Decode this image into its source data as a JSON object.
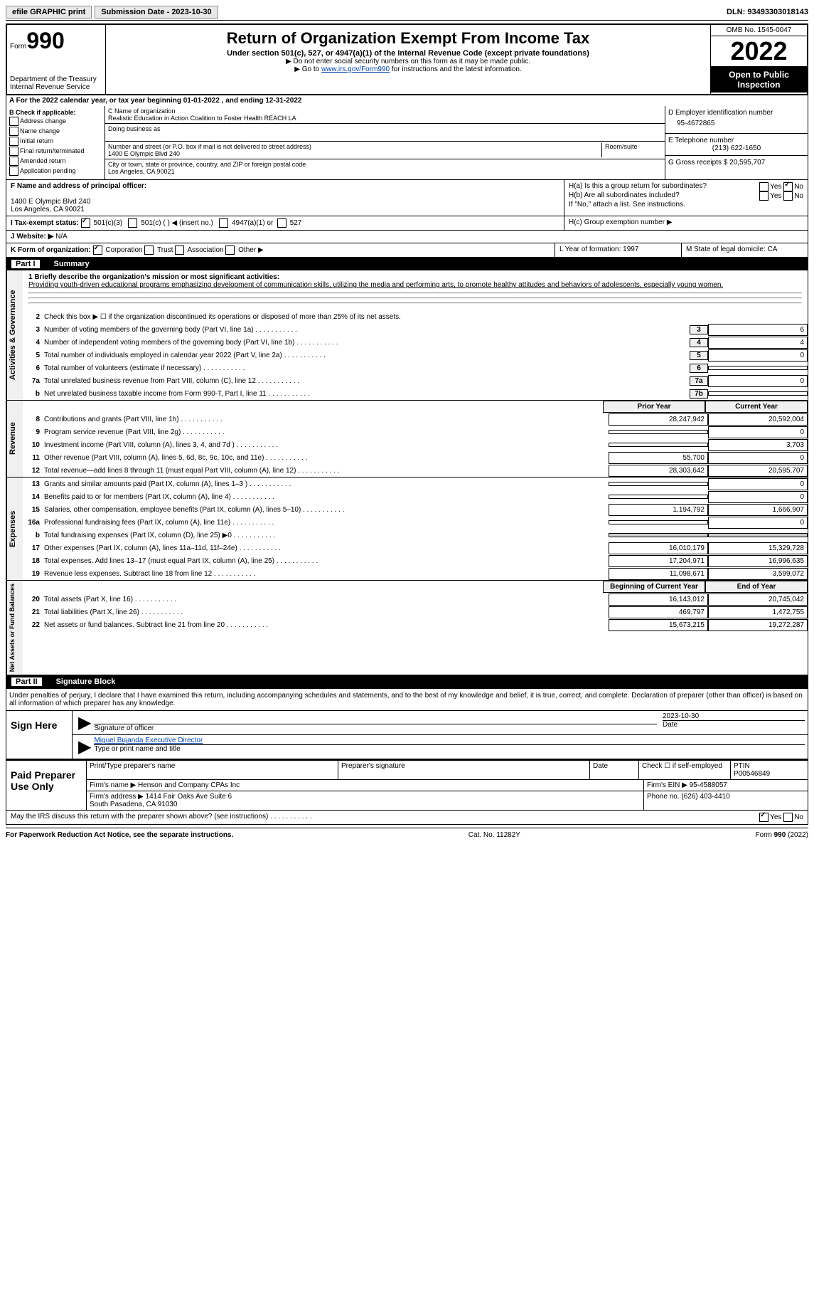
{
  "topbar": {
    "efile": "efile GRAPHIC print",
    "submission": "Submission Date - 2023-10-30",
    "dln": "DLN: 93493303018143"
  },
  "header": {
    "form_label": "Form",
    "form_num": "990",
    "dept": "Department of the Treasury\nInternal Revenue Service",
    "title": "Return of Organization Exempt From Income Tax",
    "sub": "Under section 501(c), 527, or 4947(a)(1) of the Internal Revenue Code (except private foundations)",
    "note1": "▶ Do not enter social security numbers on this form as it may be made public.",
    "note2_pre": "▶ Go to ",
    "note2_link": "www.irs.gov/Form990",
    "note2_post": " for instructions and the latest information.",
    "omb": "OMB No. 1545-0047",
    "year": "2022",
    "inspection": "Open to Public Inspection"
  },
  "section_a": {
    "calendar": "A For the 2022 calendar year, or tax year beginning 01-01-2022     , and ending 12-31-2022",
    "b_label": "B Check if applicable:",
    "b_options": [
      "Address change",
      "Name change",
      "Initial return",
      "Final return/terminated",
      "Amended return",
      "Application pending"
    ],
    "c_name_label": "C Name of organization",
    "c_name": "Realistic Education in Action Coalition to Foster Health REACH LA",
    "dba_label": "Doing business as",
    "addr_label": "Number and street (or P.O. box if mail is not delivered to street address)",
    "room_label": "Room/suite",
    "addr": "1400 E Olympic Blvd 240",
    "city_label": "City or town, state or province, country, and ZIP or foreign postal code",
    "city": "Los Angeles, CA  90021",
    "d_label": "D Employer identification number",
    "d_val": "95-4672865",
    "e_label": "E Telephone number",
    "e_val": "(213) 622-1650",
    "g_label": "G Gross receipts $ 20,595,707"
  },
  "mid": {
    "f_label": "F  Name and address of principal officer:",
    "f_addr": "1400 E Olympic Blvd 240\nLos Angeles, CA  90021",
    "ha": "H(a)  Is this a group return for subordinates?",
    "hb": "H(b)  Are all subordinates included?",
    "hb_note": "If \"No,\" attach a list. See instructions.",
    "hc": "H(c)  Group exemption number ▶",
    "i": "I  Tax-exempt status:",
    "i_501c3": "501(c)(3)",
    "i_501c": "501(c) (  ) ◀ (insert no.)",
    "i_4947": "4947(a)(1) or",
    "i_527": "527",
    "j": "J  Website: ▶",
    "j_val": "N/A",
    "k": "K Form of organization:",
    "k_corp": "Corporation",
    "k_trust": "Trust",
    "k_assoc": "Association",
    "k_other": "Other ▶",
    "l": "L Year of formation: 1997",
    "m": "M State of legal domicile: CA"
  },
  "part1": {
    "title": "Part I",
    "name": "Summary",
    "line1_label": "1  Briefly describe the organization's mission or most significant activities:",
    "line1_text": "Providing youth-driven educational programs emphasizing development of communication skills, utilizing the media and performing arts, to promote healthy attitudes and behaviors of adolescents, especially young women.",
    "line2": "Check this box ▶ ☐  if the organization discontinued its operations or disposed of more than 25% of its net assets.",
    "vert1": "Activities & Governance",
    "vert2": "Revenue",
    "vert3": "Expenses",
    "vert4": "Net Assets or Fund Balances",
    "prior_year": "Prior Year",
    "current_year": "Current Year",
    "begin_year": "Beginning of Current Year",
    "end_year": "End of Year",
    "lines_gov": [
      {
        "n": "3",
        "d": "Number of voting members of the governing body (Part VI, line 1a)",
        "box": "3",
        "v": "6"
      },
      {
        "n": "4",
        "d": "Number of independent voting members of the governing body (Part VI, line 1b)",
        "box": "4",
        "v": "4"
      },
      {
        "n": "5",
        "d": "Total number of individuals employed in calendar year 2022 (Part V, line 2a)",
        "box": "5",
        "v": "0"
      },
      {
        "n": "6",
        "d": "Total number of volunteers (estimate if necessary)",
        "box": "6",
        "v": ""
      },
      {
        "n": "7a",
        "d": "Total unrelated business revenue from Part VIII, column (C), line 12",
        "box": "7a",
        "v": "0"
      },
      {
        "n": "b",
        "d": "Net unrelated business taxable income from Form 990-T, Part I, line 11",
        "box": "7b",
        "v": ""
      }
    ],
    "lines_rev": [
      {
        "n": "8",
        "d": "Contributions and grants (Part VIII, line 1h)",
        "p": "28,247,942",
        "c": "20,592,004"
      },
      {
        "n": "9",
        "d": "Program service revenue (Part VIII, line 2g)",
        "p": "",
        "c": "0"
      },
      {
        "n": "10",
        "d": "Investment income (Part VIII, column (A), lines 3, 4, and 7d )",
        "p": "",
        "c": "3,703"
      },
      {
        "n": "11",
        "d": "Other revenue (Part VIII, column (A), lines 5, 6d, 8c, 9c, 10c, and 11e)",
        "p": "55,700",
        "c": "0"
      },
      {
        "n": "12",
        "d": "Total revenue—add lines 8 through 11 (must equal Part VIII, column (A), line 12)",
        "p": "28,303,642",
        "c": "20,595,707"
      }
    ],
    "lines_exp": [
      {
        "n": "13",
        "d": "Grants and similar amounts paid (Part IX, column (A), lines 1–3 )",
        "p": "",
        "c": "0"
      },
      {
        "n": "14",
        "d": "Benefits paid to or for members (Part IX, column (A), line 4)",
        "p": "",
        "c": "0"
      },
      {
        "n": "15",
        "d": "Salaries, other compensation, employee benefits (Part IX, column (A), lines 5–10)",
        "p": "1,194,792",
        "c": "1,666,907"
      },
      {
        "n": "16a",
        "d": "Professional fundraising fees (Part IX, column (A), line 11e)",
        "p": "",
        "c": "0"
      },
      {
        "n": "b",
        "d": "Total fundraising expenses (Part IX, column (D), line 25) ▶0",
        "p": "shade",
        "c": "shade"
      },
      {
        "n": "17",
        "d": "Other expenses (Part IX, column (A), lines 11a–11d, 11f–24e)",
        "p": "16,010,179",
        "c": "15,329,728"
      },
      {
        "n": "18",
        "d": "Total expenses. Add lines 13–17 (must equal Part IX, column (A), line 25)",
        "p": "17,204,971",
        "c": "16,996,635"
      },
      {
        "n": "19",
        "d": "Revenue less expenses. Subtract line 18 from line 12",
        "p": "11,098,671",
        "c": "3,599,072"
      }
    ],
    "lines_net": [
      {
        "n": "20",
        "d": "Total assets (Part X, line 16)",
        "p": "16,143,012",
        "c": "20,745,042"
      },
      {
        "n": "21",
        "d": "Total liabilities (Part X, line 26)",
        "p": "469,797",
        "c": "1,472,755"
      },
      {
        "n": "22",
        "d": "Net assets or fund balances. Subtract line 21 from line 20",
        "p": "15,673,215",
        "c": "19,272,287"
      }
    ]
  },
  "part2": {
    "title": "Part II",
    "name": "Signature Block",
    "penalty": "Under penalties of perjury, I declare that I have examined this return, including accompanying schedules and statements, and to the best of my knowledge and belief, it is true, correct, and complete. Declaration of preparer (other than officer) is based on all information of which preparer has any knowledge.",
    "sign_here": "Sign Here",
    "sig_officer": "Signature of officer",
    "sig_date": "2023-10-30",
    "date_label": "Date",
    "officer_name": "Miguel Bujanda  Executive Director",
    "type_name": "Type or print name and title",
    "paid_prep": "Paid Preparer Use Only",
    "print_name": "Print/Type preparer's name",
    "prep_sig": "Preparer's signature",
    "check_self": "Check ☐ if self-employed",
    "ptin_label": "PTIN",
    "ptin": "P00546849",
    "firm_name_label": "Firm's name    ▶",
    "firm_name": "Henson and Company CPAs Inc",
    "firm_ein": "Firm's EIN ▶ 95-4588057",
    "firm_addr_label": "Firm's address ▶",
    "firm_addr": "1414 Fair Oaks Ave Suite 6\nSouth Pasadena, CA  91030",
    "phone": "Phone no. (626) 403-4410",
    "discuss": "May the IRS discuss this return with the preparer shown above? (see instructions)",
    "yes": "Yes",
    "no": "No"
  },
  "footer": {
    "left": "For Paperwork Reduction Act Notice, see the separate instructions.",
    "center": "Cat. No. 11282Y",
    "right": "Form 990 (2022)"
  }
}
